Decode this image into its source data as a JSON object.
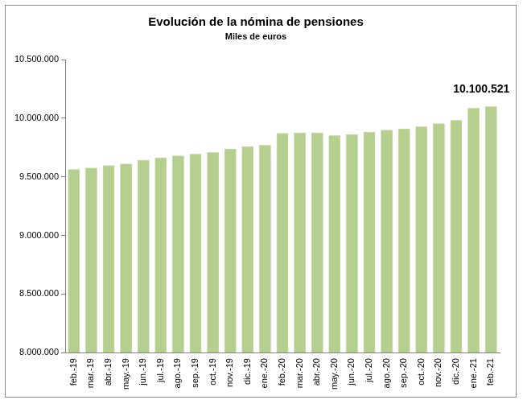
{
  "chart_data": {
    "type": "bar",
    "title": "Evolución de la nómina de pensiones",
    "subtitle": "Miles de euros",
    "categories": [
      "feb.-19",
      "mar.-19",
      "abr.-19",
      "may.-19",
      "jun.-19",
      "jul.-19",
      "ago.-19",
      "sep.-19",
      "oct.-19",
      "nov.-19",
      "dic.-19",
      "ene.-20",
      "feb.-20",
      "mar.-20",
      "abr.-20",
      "may.-20",
      "jun.-20",
      "jul.-20",
      "ago.-20",
      "sep.-20",
      "oct.-20",
      "nov.-20",
      "dic.-20",
      "ene.-21",
      "feb.-21"
    ],
    "values": [
      9565000,
      9578000,
      9598000,
      9612000,
      9645000,
      9663000,
      9680000,
      9695000,
      9710000,
      9738000,
      9760000,
      9771000,
      9872000,
      9878000,
      9878000,
      9853000,
      9862000,
      9883000,
      9900000,
      9910000,
      9930000,
      9955000,
      9985000,
      10088000,
      10100521
    ],
    "color": "#b4cf8e",
    "ylim": [
      8000000,
      10500000
    ],
    "yticks": [
      {
        "value": 8000000,
        "label": "8.000.000"
      },
      {
        "value": 8500000,
        "label": "8.500.000"
      },
      {
        "value": 9000000,
        "label": "9.000.000"
      },
      {
        "value": 9500000,
        "label": "9.500.000"
      },
      {
        "value": 10000000,
        "label": "10.000.000"
      },
      {
        "value": 10500000,
        "label": "10.500.000"
      }
    ],
    "grid": false,
    "annotations": [
      {
        "text": "10.100.521",
        "x": "feb.-21",
        "y": 10100521
      }
    ]
  }
}
